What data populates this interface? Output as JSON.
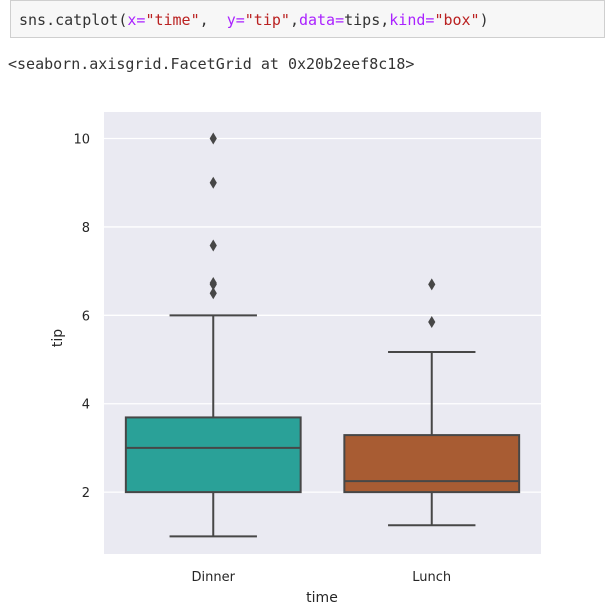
{
  "code_cell": {
    "fn": "sns.catplot(",
    "kx": "x=",
    "vx": "\"time\"",
    "sep1": ",  ",
    "ky": "y=",
    "vy": "\"tip\"",
    "sep2": ",",
    "kdata": "data=",
    "vdata": "tips",
    "sep3": ",",
    "kkind": "kind=",
    "vkind": "\"box\"",
    "close": ")"
  },
  "output_text": "<seaborn.axisgrid.FacetGrid at 0x20b2eef8c18>",
  "chart_data": {
    "type": "box",
    "xlabel": "time",
    "ylabel": "tip",
    "ylim": [
      0.6,
      10.6
    ],
    "yticks": [
      2,
      4,
      6,
      8,
      10
    ],
    "grid": true,
    "categories": [
      "Dinner",
      "Lunch"
    ],
    "boxes": [
      {
        "category": "Dinner",
        "color": "#2aa198",
        "whisker_low": 1.0,
        "q1": 2.0,
        "median": 3.0,
        "q3": 3.69,
        "whisker_high": 6.0,
        "outliers": [
          6.5,
          6.7,
          6.73,
          7.58,
          9.0,
          10.0
        ]
      },
      {
        "category": "Lunch",
        "color": "#a85c33",
        "whisker_low": 1.25,
        "q1": 2.0,
        "median": 2.25,
        "q3": 3.29,
        "whisker_high": 5.17,
        "outliers": [
          5.85,
          6.7
        ]
      }
    ],
    "colors": {
      "background": "#eaeaf2",
      "grid": "#ffffff",
      "line": "#474747"
    }
  }
}
